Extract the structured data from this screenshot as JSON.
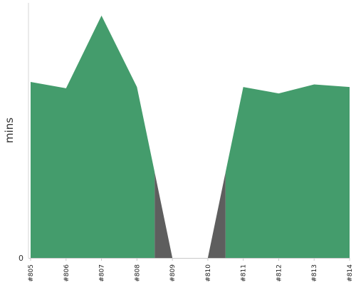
{
  "chart_data": {
    "type": "area",
    "ylabel": "mins",
    "y_tick_labels": [
      "0"
    ],
    "ylim": [
      0,
      100
    ],
    "grid": false,
    "categories": [
      "#805",
      "#806",
      "#807",
      "#808",
      "#809",
      "#810",
      "#811",
      "#812",
      "#813",
      "#814"
    ],
    "series": [
      {
        "color": "#449c6c",
        "values": [
          69,
          66.5,
          95,
          67,
          0,
          0,
          67,
          64.5,
          68,
          67
        ],
        "note_visual": "green area; drops to zero after #808 and rises back at #811"
      },
      {
        "color": "#5e5e5e",
        "values": [
          null,
          null,
          null,
          33.6,
          0,
          0,
          33.6,
          null,
          null,
          null
        ],
        "note_visual": "dark grey wedges on the transitions around #809 and #810"
      }
    ]
  }
}
